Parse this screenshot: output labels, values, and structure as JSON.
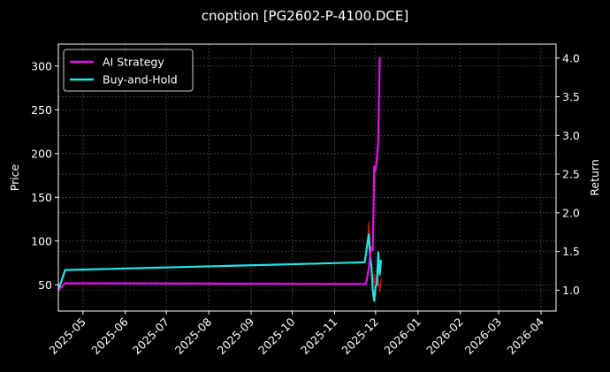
{
  "chart_data": {
    "type": "line",
    "title": "cnoption [PG2602-P-4100.DCE]",
    "xlabel": "",
    "ylabel": "Price",
    "ylabel_right": "Return",
    "x_ticks": [
      "2025-05",
      "2025-06",
      "2025-07",
      "2025-08",
      "2025-09",
      "2025-10",
      "2025-11",
      "2025-12",
      "2026-01",
      "2026-02",
      "2026-03",
      "2026-04"
    ],
    "x_range": [
      "2025-04-13",
      "2026-04-12"
    ],
    "ylim": [
      20,
      325
    ],
    "y_ticks": [
      50,
      100,
      150,
      200,
      250,
      300
    ],
    "ylim_right": [
      0.73,
      4.18
    ],
    "y_ticks_right": [
      "1.0",
      "1.5",
      "2.0",
      "2.5",
      "3.0",
      "3.5",
      "4.0"
    ],
    "grid": true,
    "legend_position": "top-left",
    "series": [
      {
        "name": "AI Strategy",
        "axis": "right",
        "color": "#e60ee6",
        "points": [
          [
            "2025-04-13",
            1.0
          ],
          [
            "2025-04-18",
            1.09
          ],
          [
            "2025-11-24",
            1.08
          ],
          [
            "2025-11-26",
            1.28
          ],
          [
            "2025-11-27",
            1.45
          ],
          [
            "2025-11-28",
            1.55
          ],
          [
            "2025-11-29",
            1.52
          ],
          [
            "2025-11-30",
            2.6
          ],
          [
            "2025-12-01",
            2.55
          ],
          [
            "2025-12-02",
            2.7
          ],
          [
            "2025-12-03",
            2.95
          ],
          [
            "2025-12-04",
            4.0
          ],
          [
            "2025-12-05",
            4.0
          ]
        ]
      },
      {
        "name": "Buy-and-Hold",
        "axis": "right",
        "color": "#22e5e5",
        "points": [
          [
            "2025-04-13",
            1.0
          ],
          [
            "2025-04-18",
            1.26
          ],
          [
            "2025-11-23",
            1.36
          ],
          [
            "2025-11-26",
            1.72
          ],
          [
            "2025-11-27",
            1.45
          ],
          [
            "2025-11-28",
            1.3
          ],
          [
            "2025-11-29",
            0.99
          ],
          [
            "2025-11-30",
            0.86
          ],
          [
            "2025-12-01",
            1.05
          ],
          [
            "2025-12-02",
            1.07
          ],
          [
            "2025-12-03",
            1.49
          ],
          [
            "2025-12-04",
            1.2
          ],
          [
            "2025-12-05",
            1.39
          ]
        ]
      },
      {
        "name": "",
        "axis": "left",
        "color": "#b81e1e",
        "points": [
          [
            "2025-11-25",
            95
          ],
          [
            "2025-11-26",
            122
          ],
          [
            "2025-11-27",
            100
          ],
          [
            "2025-11-28",
            70
          ],
          [
            "2025-11-29",
            47
          ],
          [
            "2025-11-30",
            62
          ],
          [
            "2025-12-01",
            40
          ],
          [
            "2025-12-02",
            68
          ],
          [
            "2025-12-03",
            55
          ],
          [
            "2025-12-04",
            42
          ],
          [
            "2025-12-05",
            58
          ]
        ]
      }
    ]
  }
}
